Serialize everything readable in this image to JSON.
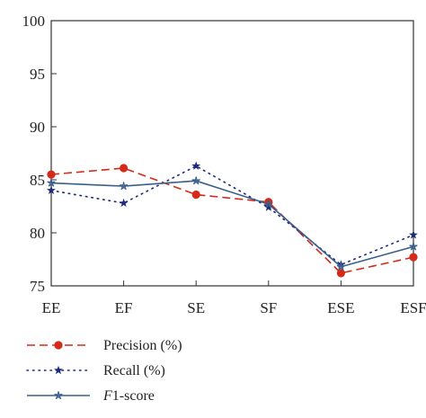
{
  "chart_data": {
    "type": "line",
    "categories": [
      "EE",
      "EF",
      "SE",
      "SF",
      "ESE",
      "ESF"
    ],
    "ylim": [
      75,
      100
    ],
    "yticks": [
      75,
      80,
      85,
      90,
      95,
      100
    ],
    "grid": false,
    "legend_position": "bottom-left",
    "series": [
      {
        "name": "Precision (%)",
        "values": [
          85.5,
          86.1,
          83.6,
          82.9,
          76.2,
          77.7
        ],
        "color": "#d42a1a",
        "line_style": "dashed",
        "marker": "circle"
      },
      {
        "name": "Recall (%)",
        "values": [
          84.0,
          82.8,
          86.3,
          82.4,
          77.0,
          79.8
        ],
        "color": "#1e2a7a",
        "line_style": "dotted",
        "marker": "star"
      },
      {
        "name": "F1-score",
        "name_parts": [
          "F",
          "1-score"
        ],
        "values": [
          84.7,
          84.4,
          84.9,
          82.7,
          76.8,
          78.7
        ],
        "color": "#3a5f8c",
        "line_style": "solid",
        "marker": "thin-star"
      }
    ]
  }
}
